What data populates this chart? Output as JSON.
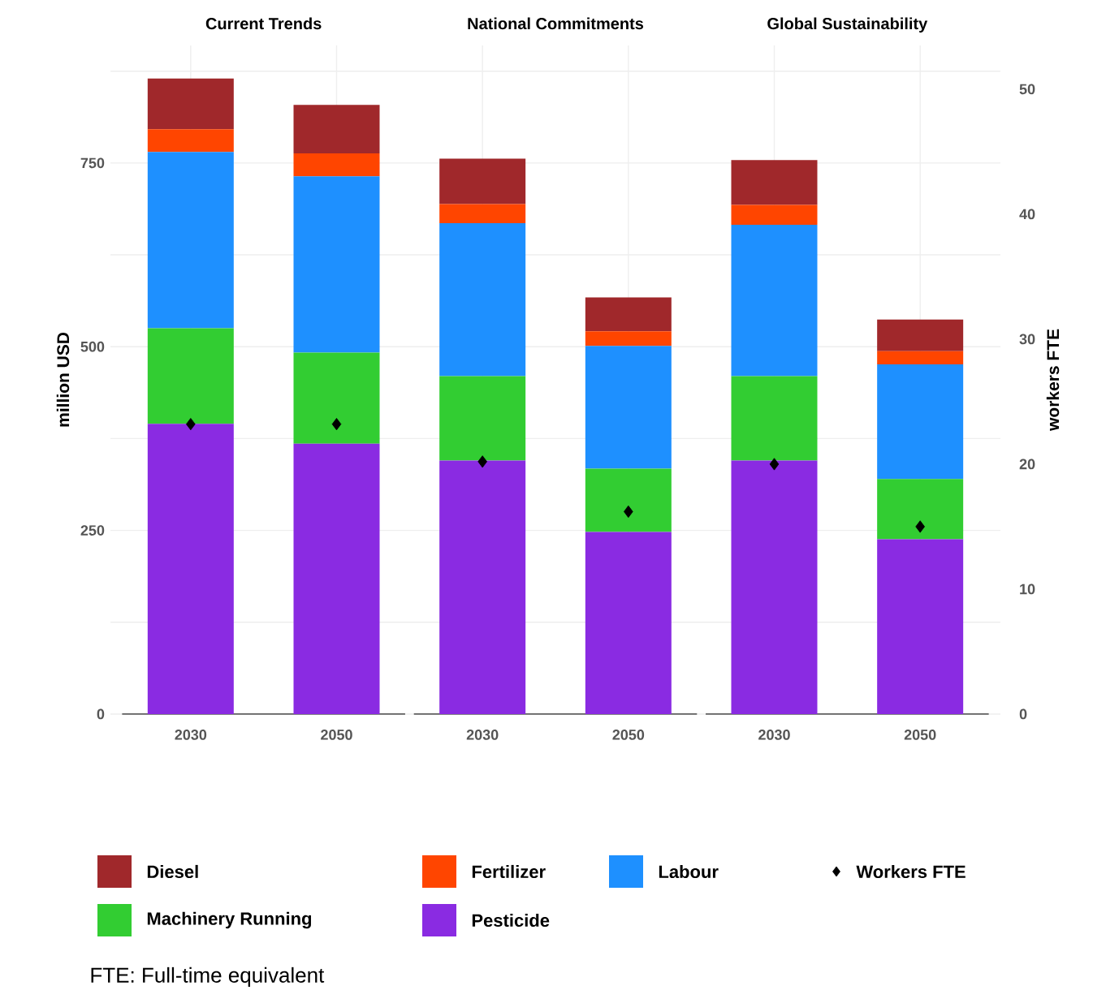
{
  "chart_data": {
    "type": "bar",
    "categories": [
      "2030",
      "2050",
      "2030",
      "2050",
      "2030",
      "2050"
    ],
    "stacked": true,
    "ylabel": "million USD",
    "y2label": "workers FTE",
    "ylim": [
      0,
      910
    ],
    "yticks": [
      0,
      {
        "value": 125,
        "label": null
      },
      250,
      {
        "value": 375,
        "label": null
      },
      500,
      {
        "value": 625,
        "label": null
      },
      750,
      {
        "value": 875,
        "label": null
      }
    ],
    "y2lim": [
      0,
      53.5
    ],
    "y2ticks": [
      0,
      10,
      20,
      30,
      40,
      50
    ],
    "grid": true,
    "legend": "bottom",
    "annotations": [
      "Current Trends",
      "National Commitments",
      "Global Sustainability",
      "FTE: Full-time equivalent"
    ],
    "series": [
      {
        "name": "Pesticide",
        "color": "#8a2be2",
        "values": [
          395,
          368,
          345,
          248,
          345,
          238
        ]
      },
      {
        "name": "Machinery Running",
        "color": "#32cd32",
        "values": [
          130,
          124,
          115,
          86,
          115,
          82
        ]
      },
      {
        "name": "Labour",
        "color": "#1e90ff",
        "values": [
          240,
          240,
          208,
          167,
          206,
          156
        ]
      },
      {
        "name": "Fertilizer",
        "color": "#ff4500",
        "values": [
          31,
          31,
          26,
          20,
          27,
          18
        ]
      },
      {
        "name": "Diesel",
        "color": "#a0282b",
        "values": [
          69,
          66,
          62,
          46,
          61,
          43
        ]
      },
      {
        "name": "Workers FTE",
        "type": "scatter",
        "axis": "y2",
        "marker": "diamond",
        "color": "#000000",
        "values": [
          23.2,
          23.2,
          20.2,
          16.2,
          20.0,
          15.0
        ]
      }
    ]
  }
}
